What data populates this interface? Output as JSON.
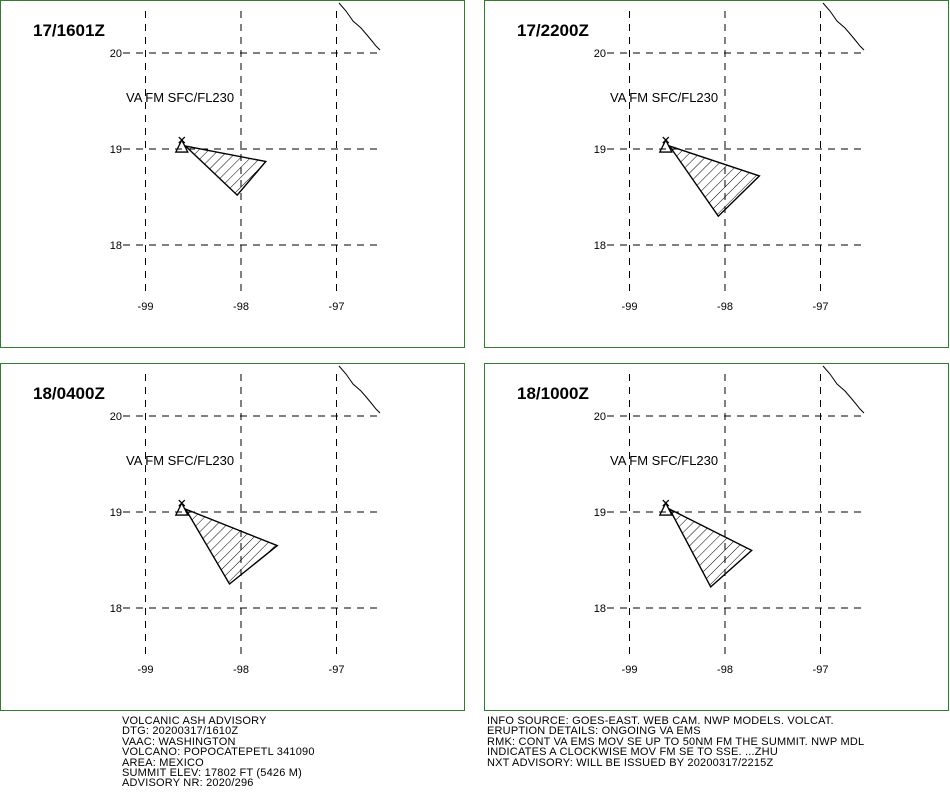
{
  "panels": [
    {
      "time": "17/1601Z",
      "label": "VA FM SFC/FL230",
      "polygon": [
        [
          -98.58,
          19.03
        ],
        [
          -97.74,
          18.87
        ],
        [
          -98.04,
          18.52
        ]
      ]
    },
    {
      "time": "17/2200Z",
      "label": "VA FM SFC/FL230",
      "polygon": [
        [
          -98.58,
          19.03
        ],
        [
          -97.64,
          18.72
        ],
        [
          -98.07,
          18.3
        ]
      ]
    },
    {
      "time": "18/0400Z",
      "label": "VA FM SFC/FL230",
      "polygon": [
        [
          -98.58,
          19.03
        ],
        [
          -97.62,
          18.65
        ],
        [
          -98.12,
          18.25
        ]
      ]
    },
    {
      "time": "18/1000Z",
      "label": "VA FM SFC/FL230",
      "polygon": [
        [
          -98.58,
          19.03
        ],
        [
          -97.72,
          18.6
        ],
        [
          -98.15,
          18.22
        ]
      ]
    }
  ],
  "grid": {
    "lon_ticks": [
      "-99",
      "-98",
      "-97"
    ],
    "lat_ticks": [
      "20",
      "19",
      "18"
    ],
    "lon_values": [
      -99,
      -98,
      -97
    ],
    "lat_values": [
      20,
      19,
      18
    ]
  },
  "volcano": {
    "lon": -98.62,
    "lat": 19.02
  },
  "advisory_left": [
    "VOLCANIC ASH ADVISORY",
    "DTG: 20200317/1610Z",
    "VAAC: WASHINGTON",
    "VOLCANO: POPOCATEPETL 341090",
    "AREA: MEXICO",
    "SUMMIT ELEV: 17802 FT (5426 M)",
    "ADVISORY NR: 2020/296"
  ],
  "advisory_right": [
    "INFO SOURCE: GOES-EAST. WEB CAM. NWP MODELS. VOLCAT.",
    "ERUPTION DETAILS: ONGOING VA EMS",
    "RMK: CONT VA EMS MOV SE UP TO 50NM FM THE SUMMIT. NWP MDL",
    "INDICATES A CLOCKWISE MOV FM SE TO SSE. ...ZHU",
    "NXT ADVISORY: WILL BE ISSUED BY 20200317/2215Z"
  ],
  "colors": {
    "border": "#2f7d2f",
    "ink": "#000000"
  }
}
